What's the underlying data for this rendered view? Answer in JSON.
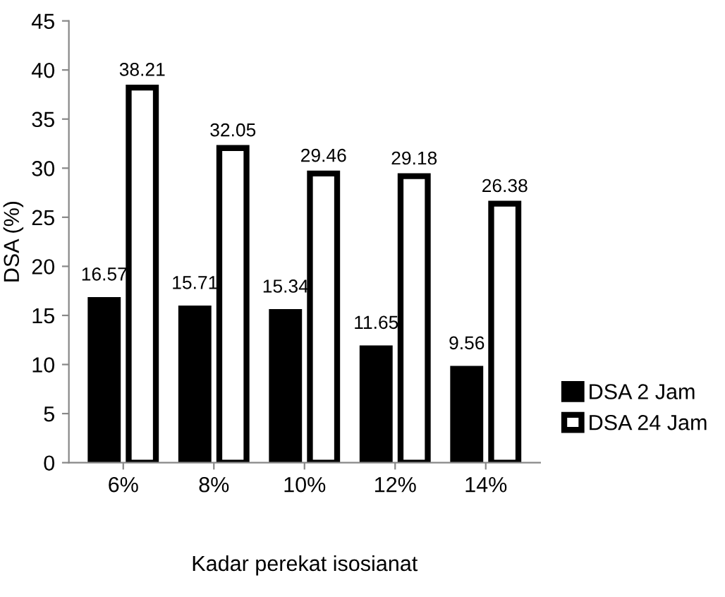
{
  "chart_data": {
    "type": "bar",
    "xlabel": "Kadar perekat isosianat",
    "ylabel": "DSA (%)",
    "categories": [
      "6%",
      "8%",
      "10%",
      "12%",
      "14%"
    ],
    "series": [
      {
        "name": "DSA 2 Jam",
        "color": "#000000",
        "values": [
          16.57,
          15.71,
          15.34,
          11.65,
          9.56
        ]
      },
      {
        "name": "DSA 24 Jam",
        "color": "#ffffff",
        "values": [
          38.21,
          32.05,
          29.46,
          29.18,
          26.38
        ]
      }
    ],
    "ylim": [
      0,
      45
    ],
    "yticks": [
      0,
      5,
      10,
      15,
      20,
      25,
      30,
      35,
      40,
      45
    ],
    "data_labels": true,
    "grid": false,
    "legend": "right"
  }
}
